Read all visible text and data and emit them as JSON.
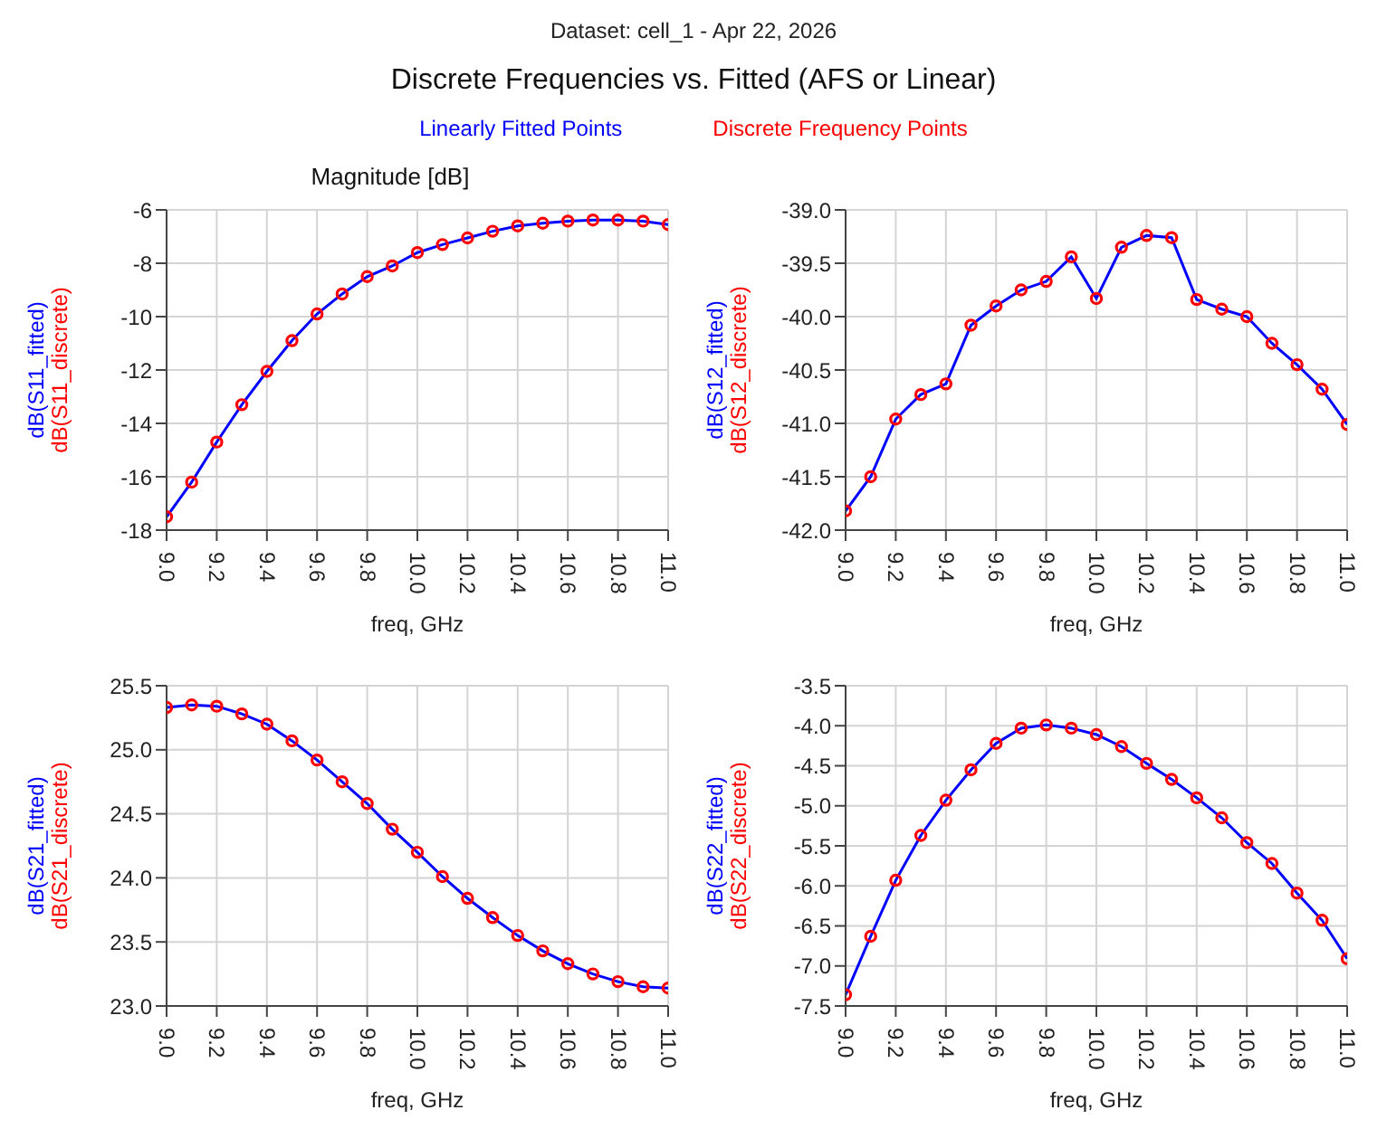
{
  "chart_data": [
    {
      "type": "other",
      "title": "Discrete Frequencies vs. Fitted (AFS or Linear)",
      "subtitle": "Dataset: cell_1 - Apr 22, 2026",
      "annotations": [
        "Linearly Fitted Points",
        "Discrete Frequency Points"
      ]
    },
    {
      "type": "line",
      "title": "Magnitude [dB]",
      "xlabel": "freq, GHz",
      "grid": true,
      "x": [
        9.0,
        9.1,
        9.2,
        9.3,
        9.4,
        9.5,
        9.6,
        9.7,
        9.8,
        9.9,
        10.0,
        10.1,
        10.2,
        10.3,
        10.4,
        10.5,
        10.6,
        10.7,
        10.8,
        10.9,
        11.0
      ],
      "xlim": [
        9,
        11
      ],
      "xticks": [
        {
          "value": 9,
          "label": "9.0"
        },
        9.2,
        9.4,
        9.6,
        9.8,
        {
          "value": 10,
          "label": "10.0"
        },
        10.2,
        10.4,
        10.6,
        10.8,
        {
          "value": 11,
          "label": "11.0"
        }
      ],
      "ylim": [
        -18,
        -6
      ],
      "yticks": [
        -18,
        -16,
        -14,
        -12,
        -10,
        -8,
        -6
      ],
      "series": [
        {
          "name": "dB(S11_fitted)",
          "type": "line",
          "marker": "none",
          "color": "#0000ff",
          "values": [
            -17.5,
            -16.2,
            -14.7,
            -13.3,
            -12.05,
            -10.9,
            -9.9,
            -9.15,
            -8.5,
            -8.1,
            -7.6,
            -7.3,
            -7.05,
            -6.8,
            -6.6,
            -6.5,
            -6.42,
            -6.38,
            -6.38,
            -6.42,
            -6.55
          ]
        },
        {
          "name": "dB(S11_discrete)",
          "type": "scatter",
          "marker": "circle",
          "color": "#ff0000",
          "values": [
            -17.5,
            -16.2,
            -14.7,
            -13.3,
            -12.05,
            -10.9,
            -9.9,
            -9.15,
            -8.5,
            -8.1,
            -7.6,
            -7.3,
            -7.05,
            -6.8,
            -6.6,
            -6.5,
            -6.42,
            -6.38,
            -6.38,
            -6.42,
            -6.55
          ]
        }
      ]
    },
    {
      "type": "line",
      "xlabel": "freq, GHz",
      "grid": true,
      "x": [
        9.0,
        9.1,
        9.2,
        9.3,
        9.4,
        9.5,
        9.6,
        9.7,
        9.8,
        9.9,
        10.0,
        10.1,
        10.2,
        10.3,
        10.4,
        10.5,
        10.6,
        10.7,
        10.8,
        10.9,
        11.0
      ],
      "xlim": [
        9,
        11
      ],
      "xticks": [
        {
          "value": 9,
          "label": "9.0"
        },
        9.2,
        9.4,
        9.6,
        9.8,
        {
          "value": 10,
          "label": "10.0"
        },
        10.2,
        10.4,
        10.6,
        10.8,
        {
          "value": 11,
          "label": "11.0"
        }
      ],
      "ylim": [
        -42,
        -39
      ],
      "yticks": [
        {
          "value": -42,
          "label": "-42.0"
        },
        -41.5,
        {
          "value": -41,
          "label": "-41.0"
        },
        -40.5,
        {
          "value": -40,
          "label": "-40.0"
        },
        -39.5,
        {
          "value": -39,
          "label": "-39.0"
        }
      ],
      "series": [
        {
          "name": "dB(S12_fitted)",
          "type": "line",
          "marker": "none",
          "color": "#0000ff",
          "values": [
            -41.82,
            -41.5,
            -40.96,
            -40.73,
            -40.63,
            -40.08,
            -39.9,
            -39.75,
            -39.67,
            -39.44,
            -39.83,
            -39.35,
            -39.24,
            -39.26,
            -39.84,
            -39.93,
            -40.0,
            -40.25,
            -40.45,
            -40.68,
            -41.01
          ]
        },
        {
          "name": "dB(S12_discrete)",
          "type": "scatter",
          "marker": "circle",
          "color": "#ff0000",
          "values": [
            -41.82,
            -41.5,
            -40.96,
            -40.73,
            -40.63,
            -40.08,
            -39.9,
            -39.75,
            -39.67,
            -39.44,
            -39.83,
            -39.35,
            -39.24,
            -39.26,
            -39.84,
            -39.93,
            -40.0,
            -40.25,
            -40.45,
            -40.68,
            -41.01
          ]
        }
      ]
    },
    {
      "type": "line",
      "xlabel": "freq, GHz",
      "grid": true,
      "x": [
        9.0,
        9.1,
        9.2,
        9.3,
        9.4,
        9.5,
        9.6,
        9.7,
        9.8,
        9.9,
        10.0,
        10.1,
        10.2,
        10.3,
        10.4,
        10.5,
        10.6,
        10.7,
        10.8,
        10.9,
        11.0
      ],
      "xlim": [
        9,
        11
      ],
      "xticks": [
        {
          "value": 9,
          "label": "9.0"
        },
        9.2,
        9.4,
        9.6,
        9.8,
        {
          "value": 10,
          "label": "10.0"
        },
        10.2,
        10.4,
        10.6,
        10.8,
        {
          "value": 11,
          "label": "11.0"
        }
      ],
      "ylim": [
        23,
        25.5
      ],
      "yticks": [
        {
          "value": 23,
          "label": "23.0"
        },
        23.5,
        {
          "value": 24,
          "label": "24.0"
        },
        24.5,
        {
          "value": 25,
          "label": "25.0"
        },
        25.5
      ],
      "series": [
        {
          "name": "dB(S21_fitted)",
          "type": "line",
          "marker": "none",
          "color": "#0000ff",
          "values": [
            25.33,
            25.35,
            25.34,
            25.28,
            25.2,
            25.07,
            24.92,
            24.75,
            24.58,
            24.38,
            24.2,
            24.01,
            23.84,
            23.69,
            23.55,
            23.43,
            23.33,
            23.25,
            23.19,
            23.15,
            23.14
          ]
        },
        {
          "name": "dB(S21_discrete)",
          "type": "scatter",
          "marker": "circle",
          "color": "#ff0000",
          "values": [
            25.33,
            25.35,
            25.34,
            25.28,
            25.2,
            25.07,
            24.92,
            24.75,
            24.58,
            24.38,
            24.2,
            24.01,
            23.84,
            23.69,
            23.55,
            23.43,
            23.33,
            23.25,
            23.19,
            23.15,
            23.14
          ]
        }
      ]
    },
    {
      "type": "line",
      "xlabel": "freq, GHz",
      "grid": true,
      "x": [
        9.0,
        9.1,
        9.2,
        9.3,
        9.4,
        9.5,
        9.6,
        9.7,
        9.8,
        9.9,
        10.0,
        10.1,
        10.2,
        10.3,
        10.4,
        10.5,
        10.6,
        10.7,
        10.8,
        10.9,
        11.0
      ],
      "xlim": [
        9,
        11
      ],
      "xticks": [
        {
          "value": 9,
          "label": "9.0"
        },
        9.2,
        9.4,
        9.6,
        9.8,
        {
          "value": 10,
          "label": "10.0"
        },
        10.2,
        10.4,
        10.6,
        10.8,
        {
          "value": 11,
          "label": "11.0"
        }
      ],
      "ylim": [
        -7.5,
        -3.5
      ],
      "yticks": [
        -7.5,
        {
          "value": -7,
          "label": "-7.0"
        },
        -6.5,
        {
          "value": -6,
          "label": "-6.0"
        },
        -5.5,
        {
          "value": -5,
          "label": "-5.0"
        },
        -4.5,
        {
          "value": -4,
          "label": "-4.0"
        },
        -3.5
      ],
      "series": [
        {
          "name": "dB(S22_fitted)",
          "type": "line",
          "marker": "none",
          "color": "#0000ff",
          "values": [
            -7.36,
            -6.63,
            -5.93,
            -5.37,
            -4.93,
            -4.55,
            -4.22,
            -4.03,
            -3.99,
            -4.03,
            -4.11,
            -4.26,
            -4.47,
            -4.67,
            -4.9,
            -5.15,
            -5.46,
            -5.72,
            -6.09,
            -6.43,
            -6.91
          ]
        },
        {
          "name": "dB(S22_discrete)",
          "type": "scatter",
          "marker": "circle",
          "color": "#ff0000",
          "values": [
            -7.36,
            -6.63,
            -5.93,
            -5.37,
            -4.93,
            -4.55,
            -4.22,
            -4.03,
            -3.99,
            -4.03,
            -4.11,
            -4.26,
            -4.47,
            -4.67,
            -4.9,
            -5.15,
            -5.46,
            -5.72,
            -6.09,
            -6.43,
            -6.91
          ]
        }
      ]
    }
  ]
}
